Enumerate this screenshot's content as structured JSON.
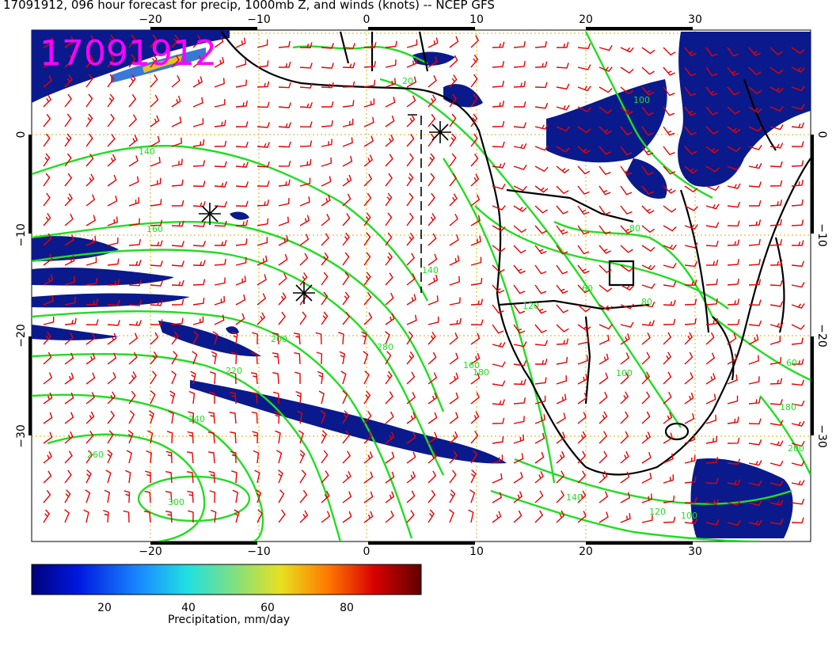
{
  "title": "17091912, 096 hour forecast for precip, 1000mb Z, and winds (knots) -- NCEP GFS",
  "stamp": "17091912",
  "longitude_ticks": [
    "−20",
    "−10",
    "0",
    "10",
    "20",
    "30"
  ],
  "latitude_ticks": [
    "0",
    "−10",
    "−20",
    "−30"
  ],
  "contour_labels": [
    "20",
    "140",
    "160",
    "200",
    "220",
    "240",
    "260",
    "280",
    "300",
    "180",
    "160",
    "140",
    "120",
    "100",
    "60",
    "80",
    "100",
    "120",
    "140",
    "180",
    "200",
    "100",
    "80",
    "60"
  ],
  "colorbar": {
    "ticks": [
      "20",
      "40",
      "60",
      "80"
    ],
    "label": "Precipitation, mm/day"
  },
  "colors": {
    "stamp": "#ff00ff",
    "barbs": "#e80000",
    "contours": "#22dd22",
    "precip": "#0a1a8c"
  }
}
